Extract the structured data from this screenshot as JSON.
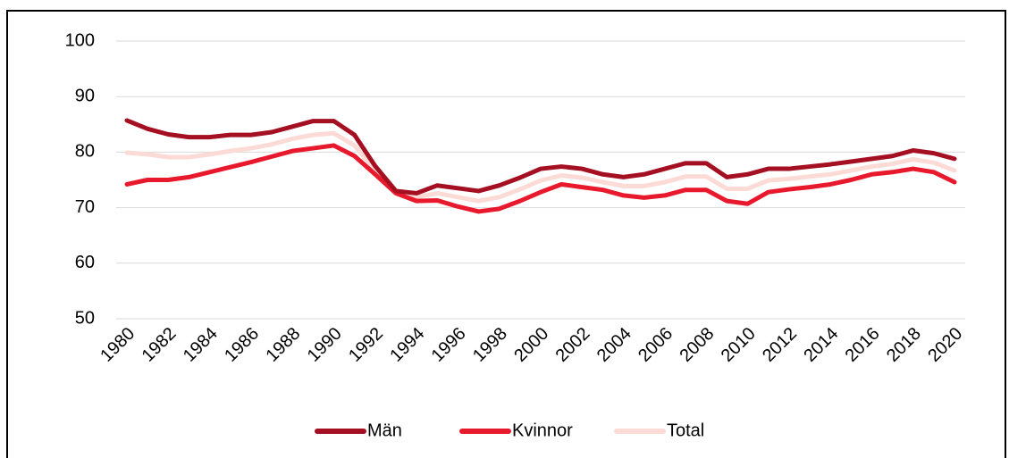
{
  "chart_data": {
    "type": "line",
    "x": [
      1980,
      1981,
      1982,
      1983,
      1984,
      1985,
      1986,
      1987,
      1988,
      1989,
      1990,
      1991,
      1992,
      1993,
      1994,
      1995,
      1996,
      1997,
      1998,
      1999,
      2000,
      2001,
      2002,
      2003,
      2004,
      2005,
      2006,
      2007,
      2008,
      2009,
      2010,
      2011,
      2012,
      2013,
      2014,
      2015,
      2016,
      2017,
      2018,
      2019,
      2020
    ],
    "xlim": [
      1980,
      2020
    ],
    "xticks": [
      1980,
      1982,
      1984,
      1986,
      1988,
      1990,
      1992,
      1994,
      1996,
      1998,
      2000,
      2002,
      2004,
      2006,
      2008,
      2010,
      2012,
      2014,
      2016,
      2018,
      2020
    ],
    "ylim": [
      50,
      100
    ],
    "yticks": [
      50,
      60,
      70,
      80,
      90,
      100
    ],
    "grid": true,
    "legend": "bottom",
    "series": [
      {
        "name": "Män",
        "color": "#a50f22",
        "values": [
          85.7,
          84.2,
          83.2,
          82.7,
          82.7,
          83.1,
          83.1,
          83.6,
          84.6,
          85.6,
          85.6,
          83.1,
          77.5,
          73.0,
          72.6,
          74.0,
          73.5,
          73.0,
          74.0,
          75.4,
          77.0,
          77.4,
          77.0,
          76.0,
          75.5,
          76.0,
          77.0,
          78.0,
          78.0,
          75.5,
          76.0,
          77.0,
          77.0,
          77.4,
          77.8,
          78.3,
          78.8,
          79.3,
          80.3,
          79.8,
          78.8
        ]
      },
      {
        "name": "Kvinnor",
        "color": "#e8192c",
        "values": [
          74.2,
          75.0,
          75.0,
          75.5,
          76.4,
          77.3,
          78.2,
          79.2,
          80.2,
          80.7,
          81.2,
          79.3,
          76.0,
          72.6,
          71.2,
          71.3,
          70.2,
          69.3,
          69.8,
          71.2,
          72.8,
          74.2,
          73.7,
          73.2,
          72.2,
          71.8,
          72.2,
          73.2,
          73.2,
          71.2,
          70.7,
          72.8,
          73.3,
          73.7,
          74.2,
          75.0,
          76.0,
          76.4,
          77.0,
          76.4,
          74.6
        ]
      },
      {
        "name": "Total",
        "color": "#fcdad5",
        "values": [
          79.9,
          79.6,
          79.1,
          79.1,
          79.6,
          80.2,
          80.7,
          81.4,
          82.4,
          83.1,
          83.4,
          81.2,
          76.8,
          72.8,
          71.9,
          72.6,
          71.9,
          71.2,
          71.9,
          73.3,
          74.9,
          75.8,
          75.4,
          74.6,
          73.9,
          73.9,
          74.6,
          75.6,
          75.6,
          73.4,
          73.4,
          74.9,
          75.2,
          75.6,
          76.0,
          76.7,
          77.4,
          77.9,
          78.7,
          78.1,
          76.7
        ]
      }
    ]
  }
}
